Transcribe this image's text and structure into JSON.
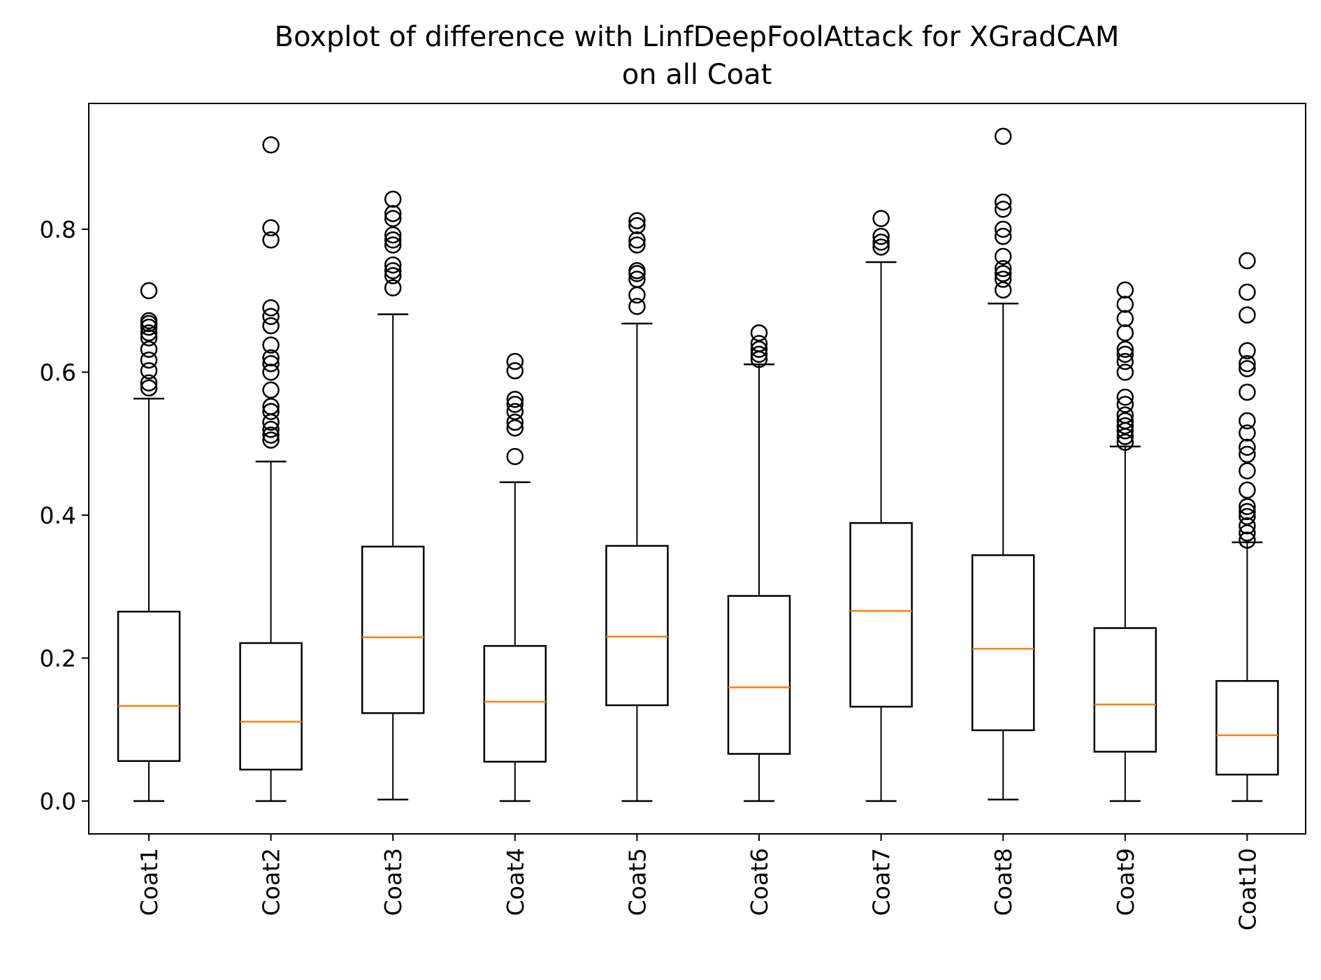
{
  "chart_data": {
    "type": "boxplot",
    "title_lines": [
      "Boxplot of difference with LinfDeepFoolAttack for XGradCAM",
      "on all Coat"
    ],
    "xlabel": "",
    "ylabel": "",
    "ylim": [
      -0.046,
      0.976
    ],
    "yticks": [
      0.0,
      0.2,
      0.4,
      0.6,
      0.8
    ],
    "ytick_labels": [
      "0.0",
      "0.2",
      "0.4",
      "0.6",
      "0.8"
    ],
    "categories": [
      "Coat1",
      "Coat2",
      "Coat3",
      "Coat4",
      "Coat5",
      "Coat6",
      "Coat7",
      "Coat8",
      "Coat9",
      "Coat10"
    ],
    "box_color": "#000000",
    "median_color": "#ff7f0e",
    "boxes": [
      {
        "label": "Coat1",
        "whislo": 0.0,
        "q1": 0.056,
        "med": 0.133,
        "q3": 0.265,
        "whishi": 0.563,
        "fliers": [
          0.578,
          0.585,
          0.602,
          0.617,
          0.632,
          0.648,
          0.655,
          0.663,
          0.668,
          0.672,
          0.714
        ]
      },
      {
        "label": "Coat2",
        "whislo": 0.0,
        "q1": 0.044,
        "med": 0.111,
        "q3": 0.221,
        "whishi": 0.475,
        "fliers": [
          0.505,
          0.512,
          0.52,
          0.53,
          0.545,
          0.552,
          0.575,
          0.6,
          0.612,
          0.62,
          0.638,
          0.665,
          0.678,
          0.69,
          0.785,
          0.802,
          0.918
        ]
      },
      {
        "label": "Coat3",
        "whislo": 0.002,
        "q1": 0.123,
        "med": 0.229,
        "q3": 0.356,
        "whishi": 0.681,
        "fliers": [
          0.718,
          0.735,
          0.742,
          0.75,
          0.778,
          0.785,
          0.792,
          0.815,
          0.822,
          0.842
        ]
      },
      {
        "label": "Coat4",
        "whislo": 0.0,
        "q1": 0.055,
        "med": 0.139,
        "q3": 0.217,
        "whishi": 0.446,
        "fliers": [
          0.482,
          0.522,
          0.53,
          0.545,
          0.555,
          0.562,
          0.602,
          0.615
        ]
      },
      {
        "label": "Coat5",
        "whislo": 0.0,
        "q1": 0.134,
        "med": 0.23,
        "q3": 0.357,
        "whishi": 0.668,
        "fliers": [
          0.692,
          0.708,
          0.73,
          0.738,
          0.742,
          0.778,
          0.785,
          0.805,
          0.812
        ]
      },
      {
        "label": "Coat6",
        "whislo": 0.0,
        "q1": 0.066,
        "med": 0.159,
        "q3": 0.287,
        "whishi": 0.611,
        "fliers": [
          0.618,
          0.625,
          0.632,
          0.64,
          0.655
        ]
      },
      {
        "label": "Coat7",
        "whislo": 0.0,
        "q1": 0.132,
        "med": 0.266,
        "q3": 0.389,
        "whishi": 0.754,
        "fliers": [
          0.775,
          0.782,
          0.79,
          0.815
        ]
      },
      {
        "label": "Coat8",
        "whislo": 0.002,
        "q1": 0.099,
        "med": 0.213,
        "q3": 0.344,
        "whishi": 0.696,
        "fliers": [
          0.715,
          0.73,
          0.738,
          0.745,
          0.762,
          0.79,
          0.8,
          0.828,
          0.838,
          0.93
        ]
      },
      {
        "label": "Coat9",
        "whislo": 0.0,
        "q1": 0.069,
        "med": 0.135,
        "q3": 0.242,
        "whishi": 0.496,
        "fliers": [
          0.502,
          0.51,
          0.518,
          0.525,
          0.532,
          0.54,
          0.555,
          0.565,
          0.6,
          0.615,
          0.625,
          0.632,
          0.655,
          0.675,
          0.695,
          0.715
        ]
      },
      {
        "label": "Coat10",
        "whislo": 0.0,
        "q1": 0.037,
        "med": 0.092,
        "q3": 0.168,
        "whishi": 0.362,
        "fliers": [
          0.365,
          0.375,
          0.385,
          0.398,
          0.405,
          0.412,
          0.435,
          0.462,
          0.485,
          0.495,
          0.515,
          0.532,
          0.572,
          0.605,
          0.612,
          0.63,
          0.68,
          0.712,
          0.756
        ]
      }
    ]
  }
}
